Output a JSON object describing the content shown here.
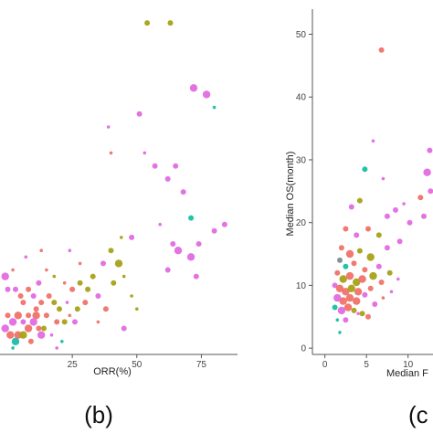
{
  "chart_data": [
    {
      "type": "scatter",
      "panel_label": "(b)",
      "xlabel": "ORR(%)",
      "ylabel": "",
      "xlim": [
        -3,
        89
      ],
      "ylim": [
        -1,
        51
      ],
      "x_ticks": [
        25,
        50,
        75
      ],
      "y_ticks": [],
      "grid": false,
      "legend": "none",
      "points": [
        {
          "x": 54,
          "y": 50,
          "c": "olive",
          "s": 2
        },
        {
          "x": 63,
          "y": 50,
          "c": "olive",
          "s": 2
        },
        {
          "x": 39,
          "y": 34,
          "c": "magenta",
          "s": 1
        },
        {
          "x": 51,
          "y": 36,
          "c": "magenta",
          "s": 2
        },
        {
          "x": 72,
          "y": 40,
          "c": "magenta",
          "s": 3
        },
        {
          "x": 77,
          "y": 39,
          "c": "magenta",
          "s": 3
        },
        {
          "x": 80,
          "y": 37,
          "c": "teal",
          "s": 1
        },
        {
          "x": 40,
          "y": 30,
          "c": "salmon",
          "s": 1
        },
        {
          "x": 53,
          "y": 30,
          "c": "magenta",
          "s": 1
        },
        {
          "x": 57,
          "y": 28,
          "c": "magenta",
          "s": 2
        },
        {
          "x": 62,
          "y": 26,
          "c": "magenta",
          "s": 2
        },
        {
          "x": 65,
          "y": 28,
          "c": "magenta",
          "s": 2
        },
        {
          "x": 68,
          "y": 24,
          "c": "magenta",
          "s": 2
        },
        {
          "x": 71,
          "y": 20,
          "c": "teal",
          "s": 2
        },
        {
          "x": 74,
          "y": 16,
          "c": "magenta",
          "s": 2
        },
        {
          "x": 80,
          "y": 18,
          "c": "magenta",
          "s": 2
        },
        {
          "x": 84,
          "y": 19,
          "c": "magenta",
          "s": 2
        },
        {
          "x": 48,
          "y": 17,
          "c": "magenta",
          "s": 2
        },
        {
          "x": 59,
          "y": 19,
          "c": "magenta",
          "s": 1
        },
        {
          "x": 64,
          "y": 16,
          "c": "magenta",
          "s": 2
        },
        {
          "x": 66,
          "y": 15,
          "c": "magenta",
          "s": 3
        },
        {
          "x": 71,
          "y": 14,
          "c": "magenta",
          "s": 3
        },
        {
          "x": 62,
          "y": 12,
          "c": "magenta",
          "s": 2
        },
        {
          "x": 73,
          "y": 11,
          "c": "magenta",
          "s": 2
        },
        {
          "x": 40,
          "y": 15,
          "c": "olive",
          "s": 2
        },
        {
          "x": 43,
          "y": 13,
          "c": "olive",
          "s": 3
        },
        {
          "x": 44,
          "y": 17,
          "c": "olive",
          "s": 1
        },
        {
          "x": 37,
          "y": 13,
          "c": "magenta",
          "s": 2
        },
        {
          "x": 41,
          "y": 10,
          "c": "olive",
          "s": 2
        },
        {
          "x": 45,
          "y": 11,
          "c": "olive",
          "s": 1
        },
        {
          "x": 48,
          "y": 8,
          "c": "olive",
          "s": 1
        },
        {
          "x": 33,
          "y": 11,
          "c": "olive",
          "s": 2
        },
        {
          "x": 31,
          "y": 9,
          "c": "olive",
          "s": 2
        },
        {
          "x": 28,
          "y": 10,
          "c": "olive",
          "s": 2
        },
        {
          "x": 25,
          "y": 9,
          "c": "salmon",
          "s": 2
        },
        {
          "x": 22,
          "y": 10,
          "c": "salmon",
          "s": 1
        },
        {
          "x": 18,
          "y": 11,
          "c": "olive",
          "s": 1
        },
        {
          "x": 15,
          "y": 12,
          "c": "salmon",
          "s": 1
        },
        {
          "x": 30,
          "y": 7,
          "c": "salmon",
          "s": 2
        },
        {
          "x": 35,
          "y": 8,
          "c": "magenta",
          "s": 2
        },
        {
          "x": 38,
          "y": 6,
          "c": "salmon",
          "s": 2
        },
        {
          "x": 27,
          "y": 6,
          "c": "olive",
          "s": 2
        },
        {
          "x": 20,
          "y": 6,
          "c": "olive",
          "s": 2
        },
        {
          "x": 18,
          "y": 7,
          "c": "olive",
          "s": 2
        },
        {
          "x": 16,
          "y": 8,
          "c": "salmon",
          "s": 2
        },
        {
          "x": 13,
          "y": 7,
          "c": "salmon",
          "s": 2
        },
        {
          "x": 24,
          "y": 5,
          "c": "salmon",
          "s": 1
        },
        {
          "x": 22,
          "y": 4,
          "c": "olive",
          "s": 2
        },
        {
          "x": 11,
          "y": 5,
          "c": "salmon",
          "s": 3
        },
        {
          "x": 8,
          "y": 5,
          "c": "salmon",
          "s": 2
        },
        {
          "x": 6,
          "y": 4,
          "c": "magenta",
          "s": 2
        },
        {
          "x": 4,
          "y": 5,
          "c": "salmon",
          "s": 3
        },
        {
          "x": 2,
          "y": 4,
          "c": "magenta",
          "s": 3
        },
        {
          "x": 0,
          "y": 5,
          "c": "salmon",
          "s": 2
        },
        {
          "x": -1,
          "y": 3,
          "c": "magenta",
          "s": 3
        },
        {
          "x": 1,
          "y": 2,
          "c": "salmon",
          "s": 3
        },
        {
          "x": 3,
          "y": 1,
          "c": "teal",
          "s": 3
        },
        {
          "x": 4,
          "y": 2,
          "c": "salmon",
          "s": 3
        },
        {
          "x": 6,
          "y": 2,
          "c": "olive",
          "s": 3
        },
        {
          "x": 8,
          "y": 3,
          "c": "salmon",
          "s": 3
        },
        {
          "x": 10,
          "y": 4,
          "c": "magenta",
          "s": 3
        },
        {
          "x": 12,
          "y": 3,
          "c": "salmon",
          "s": 2
        },
        {
          "x": 14,
          "y": 3,
          "c": "olive",
          "s": 2
        },
        {
          "x": 13,
          "y": 2,
          "c": "magenta",
          "s": 3
        },
        {
          "x": 15,
          "y": 5,
          "c": "salmon",
          "s": 2
        },
        {
          "x": 9,
          "y": 1,
          "c": "salmon",
          "s": 2
        },
        {
          "x": 2,
          "y": 0,
          "c": "teal",
          "s": 1
        },
        {
          "x": 17,
          "y": 2,
          "c": "magenta",
          "s": 1
        },
        {
          "x": 21,
          "y": 1,
          "c": "teal",
          "s": 1
        },
        {
          "x": 19,
          "y": 0,
          "c": "magenta",
          "s": 1
        },
        {
          "x": 5,
          "y": 8,
          "c": "salmon",
          "s": 2
        },
        {
          "x": 3,
          "y": 9,
          "c": "magenta",
          "s": 2
        },
        {
          "x": 0,
          "y": 9,
          "c": "magenta",
          "s": 2
        },
        {
          "x": -1,
          "y": 11,
          "c": "magenta",
          "s": 3
        },
        {
          "x": 2,
          "y": 12,
          "c": "salmon",
          "s": 1
        },
        {
          "x": 10,
          "y": 8,
          "c": "magenta",
          "s": 2
        },
        {
          "x": 8,
          "y": 9,
          "c": "salmon",
          "s": 2
        },
        {
          "x": 12,
          "y": 10,
          "c": "magenta",
          "s": 2
        },
        {
          "x": 6,
          "y": 7,
          "c": "salmon",
          "s": 2
        },
        {
          "x": 11,
          "y": 6,
          "c": "salmon",
          "s": 2
        },
        {
          "x": 19,
          "y": 4,
          "c": "salmon",
          "s": 2
        },
        {
          "x": 23,
          "y": 7,
          "c": "magenta",
          "s": 1
        },
        {
          "x": 26,
          "y": 4,
          "c": "magenta",
          "s": 2
        },
        {
          "x": 35,
          "y": 4,
          "c": "salmon",
          "s": 1
        },
        {
          "x": 45,
          "y": 3,
          "c": "magenta",
          "s": 2
        },
        {
          "x": 50,
          "y": 6,
          "c": "olive",
          "s": 1
        },
        {
          "x": 28,
          "y": 13,
          "c": "salmon",
          "s": 1
        },
        {
          "x": 24,
          "y": 15,
          "c": "magenta",
          "s": 1
        },
        {
          "x": 13,
          "y": 15,
          "c": "salmon",
          "s": 1
        },
        {
          "x": 7,
          "y": 14,
          "c": "magenta",
          "s": 1
        }
      ]
    },
    {
      "type": "scatter",
      "panel_label": "(c",
      "xlabel": "Median F",
      "ylabel": "Median OS(month)",
      "xlim": [
        -1.5,
        13
      ],
      "ylim": [
        -1,
        54
      ],
      "x_ticks": [
        0,
        5,
        10
      ],
      "y_ticks": [
        0,
        10,
        20,
        30,
        40,
        50
      ],
      "grid": false,
      "legend": "none",
      "points": [
        {
          "x": 6.8,
          "y": 47.5,
          "c": "salmon",
          "s": 2
        },
        {
          "x": 4.8,
          "y": 28.5,
          "c": "teal",
          "s": 2
        },
        {
          "x": 12.6,
          "y": 31.5,
          "c": "magenta",
          "s": 2
        },
        {
          "x": 12.3,
          "y": 28,
          "c": "magenta",
          "s": 3
        },
        {
          "x": 11.5,
          "y": 24,
          "c": "salmon",
          "s": 2
        },
        {
          "x": 11.9,
          "y": 21,
          "c": "magenta",
          "s": 2
        },
        {
          "x": 12.7,
          "y": 25,
          "c": "magenta",
          "s": 2
        },
        {
          "x": 8.5,
          "y": 22,
          "c": "magenta",
          "s": 2
        },
        {
          "x": 9.5,
          "y": 23,
          "c": "magenta",
          "s": 1
        },
        {
          "x": 10.2,
          "y": 20,
          "c": "magenta",
          "s": 2
        },
        {
          "x": 7.5,
          "y": 21,
          "c": "magenta",
          "s": 2
        },
        {
          "x": 3.2,
          "y": 22.5,
          "c": "magenta",
          "s": 2
        },
        {
          "x": 4.2,
          "y": 23.5,
          "c": "olive",
          "s": 2
        },
        {
          "x": 5.8,
          "y": 33,
          "c": "magenta",
          "s": 1
        },
        {
          "x": 7,
          "y": 27,
          "c": "magenta",
          "s": 1
        },
        {
          "x": 2.5,
          "y": 19,
          "c": "salmon",
          "s": 2
        },
        {
          "x": 3.8,
          "y": 18,
          "c": "magenta",
          "s": 2
        },
        {
          "x": 5.2,
          "y": 19,
          "c": "salmon",
          "s": 2
        },
        {
          "x": 6.5,
          "y": 18,
          "c": "olive",
          "s": 2
        },
        {
          "x": 7.5,
          "y": 16,
          "c": "magenta",
          "s": 2
        },
        {
          "x": 9,
          "y": 17,
          "c": "magenta",
          "s": 2
        },
        {
          "x": 2,
          "y": 16,
          "c": "salmon",
          "s": 2
        },
        {
          "x": 3,
          "y": 15,
          "c": "salmon",
          "s": 3
        },
        {
          "x": 4.2,
          "y": 15.5,
          "c": "olive",
          "s": 2
        },
        {
          "x": 5.5,
          "y": 14.5,
          "c": "olive",
          "s": 3
        },
        {
          "x": 6.5,
          "y": 13,
          "c": "magenta",
          "s": 2
        },
        {
          "x": 7.8,
          "y": 12,
          "c": "olive",
          "s": 2
        },
        {
          "x": 8.8,
          "y": 11,
          "c": "magenta",
          "s": 1
        },
        {
          "x": 1.8,
          "y": 14,
          "c": "grey",
          "s": 2
        },
        {
          "x": 2.5,
          "y": 13,
          "c": "teal",
          "s": 2
        },
        {
          "x": 3.5,
          "y": 13.5,
          "c": "salmon",
          "s": 2
        },
        {
          "x": 4.8,
          "y": 12.5,
          "c": "salmon",
          "s": 2
        },
        {
          "x": 5.8,
          "y": 11.5,
          "c": "olive",
          "s": 3
        },
        {
          "x": 6.8,
          "y": 10.5,
          "c": "salmon",
          "s": 2
        },
        {
          "x": 1.5,
          "y": 12,
          "c": "salmon",
          "s": 2
        },
        {
          "x": 2.2,
          "y": 11,
          "c": "olive",
          "s": 3
        },
        {
          "x": 3,
          "y": 11.5,
          "c": "salmon",
          "s": 3
        },
        {
          "x": 3.8,
          "y": 10.5,
          "c": "olive",
          "s": 3
        },
        {
          "x": 4.5,
          "y": 11,
          "c": "salmon",
          "s": 3
        },
        {
          "x": 5.5,
          "y": 9.5,
          "c": "salmon",
          "s": 2
        },
        {
          "x": 1.2,
          "y": 10,
          "c": "magenta",
          "s": 2
        },
        {
          "x": 1.8,
          "y": 9.5,
          "c": "salmon",
          "s": 3
        },
        {
          "x": 2.5,
          "y": 9,
          "c": "salmon",
          "s": 3
        },
        {
          "x": 3.2,
          "y": 9.5,
          "c": "olive",
          "s": 3
        },
        {
          "x": 4,
          "y": 9,
          "c": "salmon",
          "s": 3
        },
        {
          "x": 4.8,
          "y": 8.5,
          "c": "magenta",
          "s": 2
        },
        {
          "x": 1.5,
          "y": 8,
          "c": "magenta",
          "s": 3
        },
        {
          "x": 2.2,
          "y": 7.5,
          "c": "salmon",
          "s": 3
        },
        {
          "x": 3,
          "y": 8,
          "c": "salmon",
          "s": 3
        },
        {
          "x": 3.8,
          "y": 7.5,
          "c": "salmon",
          "s": 3
        },
        {
          "x": 1.2,
          "y": 6.5,
          "c": "teal",
          "s": 2
        },
        {
          "x": 2,
          "y": 6,
          "c": "magenta",
          "s": 3
        },
        {
          "x": 2.8,
          "y": 6.5,
          "c": "salmon",
          "s": 3
        },
        {
          "x": 3.5,
          "y": 6,
          "c": "olive",
          "s": 2
        },
        {
          "x": 4.5,
          "y": 5.5,
          "c": "olive",
          "s": 2
        },
        {
          "x": 5.2,
          "y": 5,
          "c": "salmon",
          "s": 2
        },
        {
          "x": 1.5,
          "y": 4.5,
          "c": "teal",
          "s": 1
        },
        {
          "x": 2.5,
          "y": 4.5,
          "c": "magenta",
          "s": 2
        },
        {
          "x": 1.8,
          "y": 2.5,
          "c": "teal",
          "s": 1
        },
        {
          "x": 6,
          "y": 7,
          "c": "magenta",
          "s": 2
        },
        {
          "x": 7,
          "y": 8,
          "c": "salmon",
          "s": 1
        },
        {
          "x": 8,
          "y": 9,
          "c": "magenta",
          "s": 1
        },
        {
          "x": 4,
          "y": 5.5,
          "c": "magenta",
          "s": 1
        }
      ]
    }
  ],
  "colors": {
    "magenta": "#e26be2",
    "salmon": "#f0726a",
    "olive": "#a6a219",
    "teal": "#19bfa6",
    "blue": "#2aa7e0",
    "grey": "#7f8c8d",
    "axis": "#555555"
  }
}
